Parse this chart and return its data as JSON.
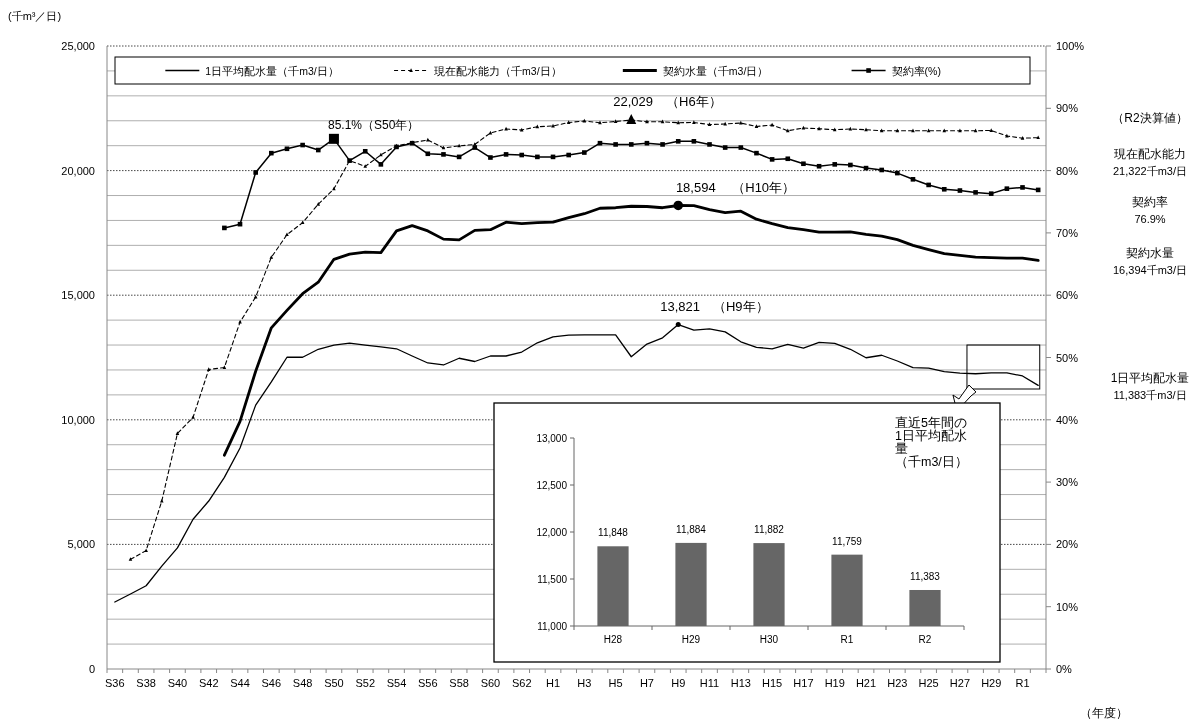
{
  "chart_data": [
    {
      "type": "line",
      "ylabel": "(千m³／日)",
      "xlabel": "（年度）",
      "categories": [
        "S36",
        null,
        "S38",
        null,
        "S40",
        null,
        "S42",
        null,
        "S44",
        null,
        "S46",
        null,
        "S48",
        null,
        "S50",
        null,
        "S52",
        null,
        "S54",
        null,
        "S56",
        null,
        "S58",
        null,
        "S60",
        null,
        "S62",
        null,
        "H1",
        null,
        "H3",
        null,
        "H5",
        null,
        "H7",
        null,
        "H9",
        null,
        "H11",
        null,
        "H13",
        null,
        "H15",
        null,
        "H17",
        null,
        "H19",
        null,
        "H21",
        null,
        "H23",
        null,
        "H25",
        null,
        "H27",
        null,
        "H29",
        null,
        "R1",
        null
      ],
      "series": [
        {
          "name": "1日平均配水量（千m3/日）",
          "color": "#000000",
          "line_style": "solid",
          "marker": "none",
          "values": [
            2690,
            3010,
            3340,
            4130,
            4860,
            6010,
            6740,
            7690,
            8870,
            10590,
            11520,
            12510,
            12510,
            12830,
            13000,
            13080,
            13000,
            12930,
            12850,
            12560,
            12280,
            12200,
            12470,
            12340,
            12560,
            12560,
            12720,
            13090,
            13330,
            13400,
            13410,
            13410,
            13410,
            12530,
            13040,
            13290,
            13821,
            13600,
            13650,
            13530,
            13130,
            12910,
            12850,
            13030,
            12880,
            13110,
            13070,
            12830,
            12490,
            12590,
            12360,
            12090,
            12070,
            11930,
            11870,
            11848,
            11884,
            11882,
            11759,
            11383
          ]
        },
        {
          "name": "現在配水能力（千m3/日）",
          "color": "#000000",
          "line_style": "dashed",
          "marker": "triangle",
          "values": [
            null,
            4400,
            4750,
            6740,
            9450,
            10100,
            12020,
            12100,
            13920,
            14930,
            16520,
            17430,
            17910,
            18650,
            19270,
            20400,
            20170,
            20630,
            20990,
            21120,
            21230,
            20910,
            20990,
            21050,
            21510,
            21670,
            21630,
            21760,
            21790,
            21930,
            21990,
            21920,
            21970,
            22029,
            21960,
            21960,
            21920,
            21930,
            21850,
            21870,
            21910,
            21770,
            21830,
            21600,
            21710,
            21680,
            21640,
            21670,
            21640,
            21600,
            21600,
            21600,
            21600,
            21600,
            21600,
            21600,
            21610,
            21390,
            21300,
            21322
          ]
        },
        {
          "name": "契約水量（千m3/日）",
          "color": "#000000",
          "line_style": "solid",
          "marker": "none",
          "values": [
            null,
            null,
            null,
            null,
            null,
            null,
            null,
            8580,
            9940,
            11950,
            13690,
            14390,
            15060,
            15520,
            16440,
            16650,
            16730,
            16710,
            17580,
            17790,
            17580,
            17250,
            17220,
            17600,
            17630,
            17930,
            17870,
            17910,
            17930,
            18110,
            18270,
            18490,
            18510,
            18570,
            18560,
            18510,
            18600,
            18594,
            18430,
            18310,
            18370,
            18050,
            17870,
            17710,
            17630,
            17530,
            17530,
            17540,
            17440,
            17370,
            17230,
            17000,
            16830,
            16670,
            16600,
            16530,
            16510,
            16490,
            16490,
            16394
          ]
        },
        {
          "name": "契約率(%)",
          "color": "#000000",
          "line_style": "solid",
          "marker": "square",
          "axis": "y2",
          "values": [
            null,
            null,
            null,
            null,
            null,
            null,
            null,
            70.8,
            71.4,
            79.7,
            82.8,
            83.5,
            84.1,
            83.3,
            85.1,
            81.6,
            83.1,
            81.0,
            83.8,
            84.4,
            82.7,
            82.6,
            82.2,
            83.7,
            82.1,
            82.6,
            82.5,
            82.2,
            82.2,
            82.5,
            82.9,
            84.4,
            84.2,
            84.2,
            84.4,
            84.2,
            84.7,
            84.7,
            84.2,
            83.7,
            83.7,
            82.8,
            81.8,
            81.9,
            81.1,
            80.7,
            81.0,
            80.9,
            80.4,
            80.1,
            79.6,
            78.6,
            77.7,
            77.0,
            76.8,
            76.5,
            76.3,
            77.1,
            77.3,
            76.9
          ]
        }
      ],
      "ylim": [
        0,
        25000
      ],
      "yticks": [
        0,
        {
          "value": 1000,
          "label": null
        },
        {
          "value": 2000,
          "label": null
        },
        {
          "value": 3000,
          "label": null
        },
        {
          "value": 4000,
          "label": null
        },
        {
          "value": 5000,
          "label": "5,000"
        },
        {
          "value": 6000,
          "label": null
        },
        {
          "value": 7000,
          "label": null
        },
        {
          "value": 8000,
          "label": null
        },
        {
          "value": 9000,
          "label": null
        },
        {
          "value": 10000,
          "label": "10,000"
        },
        {
          "value": 11000,
          "label": null
        },
        {
          "value": 12000,
          "label": null
        },
        {
          "value": 13000,
          "label": null
        },
        {
          "value": 14000,
          "label": null
        },
        {
          "value": 15000,
          "label": "15,000"
        },
        {
          "value": 16000,
          "label": null
        },
        {
          "value": 17000,
          "label": null
        },
        {
          "value": 18000,
          "label": null
        },
        {
          "value": 19000,
          "label": null
        },
        {
          "value": 20000,
          "label": "20,000"
        },
        {
          "value": 21000,
          "label": null
        },
        {
          "value": 22000,
          "label": null
        },
        {
          "value": 23000,
          "label": null
        },
        {
          "value": 24000,
          "label": null
        },
        {
          "value": 25000,
          "label": "25,000"
        }
      ],
      "y2lim": [
        0,
        100
      ],
      "y2ticks": [
        {
          "value": 0,
          "label": "0%"
        },
        {
          "value": 10,
          "label": "10%"
        },
        {
          "value": 20,
          "label": "20%"
        },
        {
          "value": 30,
          "label": "30%"
        },
        {
          "value": 40,
          "label": "40%"
        },
        {
          "value": 50,
          "label": "50%"
        },
        {
          "value": 60,
          "label": "60%"
        },
        {
          "value": 70,
          "label": "70%"
        },
        {
          "value": 80,
          "label": "80%"
        },
        {
          "value": 90,
          "label": "90%"
        },
        {
          "value": 100,
          "label": "100%"
        }
      ],
      "grid": "y",
      "legend": "top",
      "annotations": [
        {
          "text": "22,029　（H6年）",
          "y": 22029
        },
        {
          "text": "18,594　 （H10年）",
          "y": 18594
        },
        {
          "text": "13,821　（H9年）",
          "y": 13821
        },
        "（R2決算値）",
        "現在配水能力\n21,322千m3/日",
        "契約率\n76.9%",
        "契約水量\n16,394千m3/日",
        "1日平均配水量\n11,383千m3/日",
        "85.1%（S50年）"
      ]
    },
    {
      "type": "bar",
      "title": "直近5年間の1日平均配水量（千m3/日）",
      "categories": [
        "H28",
        "H29",
        "H30",
        "R1",
        "R2"
      ],
      "values": [
        11848,
        11884,
        11882,
        11759,
        11383
      ],
      "value_labels": [
        "11,848",
        "11,884",
        "11,882",
        "11,759",
        "11,383"
      ],
      "color": "#666666",
      "ylim": [
        11000,
        13000
      ],
      "yticks": [
        {
          "value": 11000,
          "label": "11,000"
        },
        {
          "value": 11500,
          "label": "11,500"
        },
        {
          "value": 12000,
          "label": "12,000"
        },
        {
          "value": 12500,
          "label": "12,500"
        },
        {
          "value": 13000,
          "label": "13,000"
        }
      ]
    }
  ]
}
